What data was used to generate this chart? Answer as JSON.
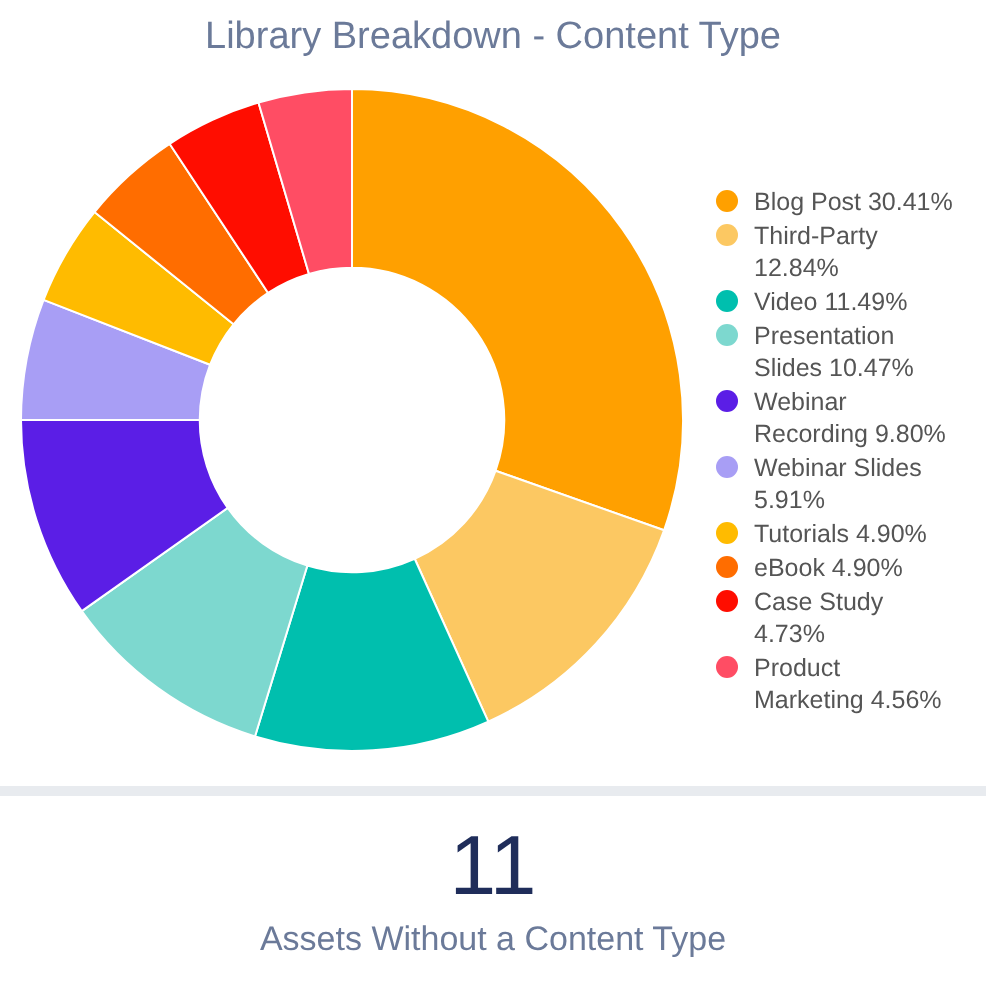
{
  "chart_data": [
    {
      "type": "donut",
      "title": "Library Breakdown - Content Type",
      "legend": "right",
      "categories": [
        "Blog Post",
        "Third-Party",
        "Video",
        "Presentation Slides",
        "Webinar Recording",
        "Webinar Slides",
        "Tutorials",
        "eBook",
        "Case Study",
        "Product Marketing"
      ],
      "values": [
        30.41,
        12.84,
        11.49,
        10.47,
        9.8,
        5.91,
        4.9,
        4.9,
        4.73,
        4.56
      ],
      "value_labels": [
        "30.41%",
        "12.84%",
        "11.49%",
        "10.47%",
        "9.80%",
        "5.91%",
        "4.90%",
        "4.90%",
        "4.73%",
        "4.56%"
      ],
      "colors": [
        "#ffa000",
        "#fcc862",
        "#00bfae",
        "#7dd8cf",
        "#5b1ee6",
        "#a89ef5",
        "#ffbb00",
        "#ff6d00",
        "#ff0d00",
        "#ff4d64"
      ]
    },
    {
      "type": "other",
      "annotations": [
        "11"
      ],
      "title": "Assets Without a Content Type"
    }
  ]
}
